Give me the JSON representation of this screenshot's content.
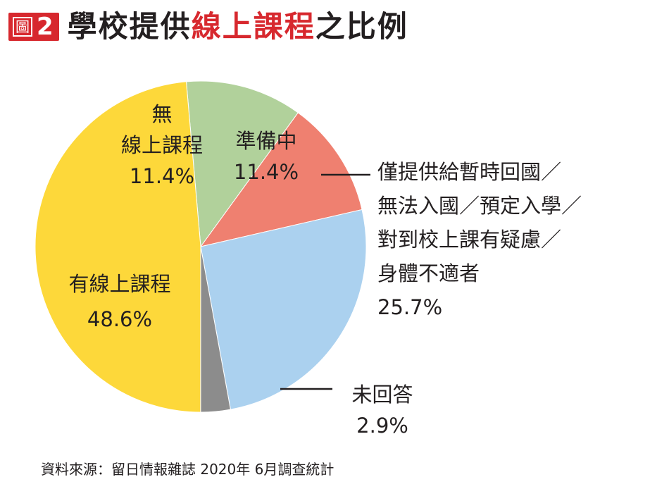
{
  "header": {
    "badge_word": "圖",
    "badge_number": "2",
    "title_part1": "學校提供",
    "title_part2": "線上課程",
    "title_part3": "之比例",
    "accent_color": "#d7282e"
  },
  "chart_data": {
    "type": "pie",
    "title": "學校提供線上課程之比例",
    "slices": [
      {
        "key": "none",
        "label_lines": [
          "無",
          "線上課程"
        ],
        "value": 11.4,
        "value_text": "11.4%",
        "color": "#b1d19b"
      },
      {
        "key": "preparing",
        "label_lines": [
          "準備中"
        ],
        "value": 11.4,
        "value_text": "11.4%",
        "color": "#ef8070"
      },
      {
        "key": "not_needed",
        "label_lines": [
          "僅提供給暫時回國／",
          "無法入國／預定入學／",
          "對到校上課有疑慮／",
          "身體不適者"
        ],
        "value": 25.7,
        "value_text": "25.7%",
        "color": "#abd1ef"
      },
      {
        "key": "no_answer",
        "label_lines": [
          "未回答"
        ],
        "value": 2.9,
        "value_text": "2.9%",
        "color": "#8c8c8c"
      },
      {
        "key": "offered",
        "label_lines": [
          "有線上課程"
        ],
        "value": 48.6,
        "value_text": "48.6%",
        "color": "#fdd83a"
      }
    ]
  },
  "footer": {
    "source": "資料來源：留日情報雜誌 2020年 6月調查統計"
  }
}
